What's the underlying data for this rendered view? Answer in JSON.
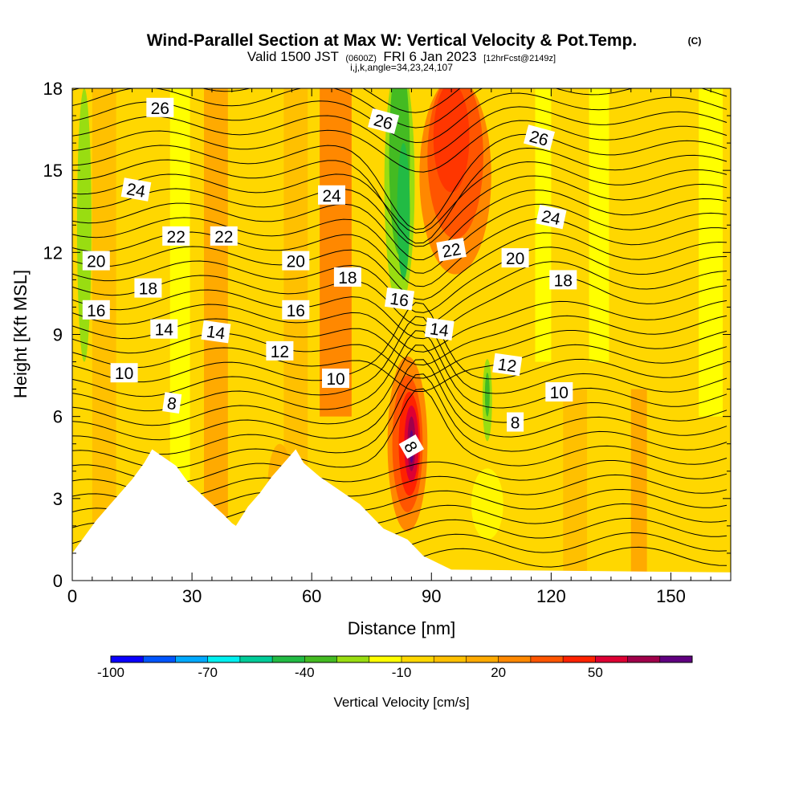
{
  "chart_data": {
    "type": "heatmap",
    "title": "Wind-Parallel Section at Max W: Vertical Velocity & Pot.Temp.",
    "title_mark": "(C)",
    "subtitle_parts": [
      "Valid 1500 JST",
      "(0600Z)",
      "FRI 6 Jan 2023",
      "[12hrFcst@2149z]"
    ],
    "subtitle2": "i,j,k,angle=34,23,24,107",
    "xlabel": "Distance [nm]",
    "ylabel": "Height [Kft MSL]",
    "xlim": [
      0,
      165
    ],
    "ylim": [
      0,
      18
    ],
    "xticks": [
      "0",
      "30",
      "60",
      "90",
      "120",
      "150"
    ],
    "yticks": [
      "0",
      "3",
      "6",
      "9",
      "12",
      "15",
      "18"
    ],
    "colorbar": {
      "label": "Vertical Velocity [cm/s]",
      "tick_labels": [
        "-100",
        "-70",
        "-40",
        "-10",
        "20",
        "50"
      ],
      "colors": [
        "#0a00ff",
        "#0055ff",
        "#00a9ff",
        "#00f0f0",
        "#00cc99",
        "#22bb44",
        "#44bb22",
        "#99dd11",
        "#ffff00",
        "#ffd700",
        "#ffc000",
        "#ffaa00",
        "#ff8800",
        "#ff5500",
        "#ff2200",
        "#dd0033",
        "#a0004a",
        "#600080"
      ]
    },
    "vertical_velocity_features": [
      {
        "x": 85,
        "y": 5.0,
        "value": 60,
        "note": "max updraft"
      },
      {
        "x": 83,
        "y": 15.0,
        "value": -40,
        "note": "downdraft column"
      },
      {
        "x": 95,
        "y": 15.0,
        "value": 35
      },
      {
        "x": 3,
        "y": 14.0,
        "value": -25
      },
      {
        "x": 104,
        "y": 6.5,
        "value": -25
      },
      {
        "x": 65,
        "y": 15.0,
        "value": 20
      },
      {
        "x": 35,
        "y": 16.0,
        "value": 15
      }
    ],
    "theta_contour_labels": [
      "26",
      "26",
      "26",
      "24",
      "24",
      "24",
      "22",
      "22",
      "22",
      "20",
      "20",
      "20",
      "18",
      "18",
      "18",
      "16",
      "16",
      "16",
      "14",
      "14",
      "14",
      "12",
      "12",
      "10",
      "10",
      "10",
      "8",
      "8",
      "8"
    ],
    "terrain_profile": [
      {
        "x": 0,
        "h": 1.0
      },
      {
        "x": 3,
        "h": 1.6
      },
      {
        "x": 6,
        "h": 2.2
      },
      {
        "x": 9,
        "h": 2.7
      },
      {
        "x": 12,
        "h": 3.2
      },
      {
        "x": 15,
        "h": 3.7
      },
      {
        "x": 18,
        "h": 4.3
      },
      {
        "x": 20,
        "h": 4.8
      },
      {
        "x": 26,
        "h": 4.2
      },
      {
        "x": 29,
        "h": 3.6
      },
      {
        "x": 32,
        "h": 3.2
      },
      {
        "x": 35,
        "h": 2.8
      },
      {
        "x": 38,
        "h": 2.4
      },
      {
        "x": 40,
        "h": 2.1
      },
      {
        "x": 41,
        "h": 2.0
      },
      {
        "x": 44,
        "h": 2.7
      },
      {
        "x": 47,
        "h": 3.2
      },
      {
        "x": 50,
        "h": 3.8
      },
      {
        "x": 53,
        "h": 4.3
      },
      {
        "x": 56,
        "h": 4.8
      },
      {
        "x": 58,
        "h": 4.3
      },
      {
        "x": 62,
        "h": 3.8
      },
      {
        "x": 66,
        "h": 3.4
      },
      {
        "x": 72,
        "h": 2.8
      },
      {
        "x": 78,
        "h": 1.9
      },
      {
        "x": 84,
        "h": 1.5
      },
      {
        "x": 88,
        "h": 0.9
      },
      {
        "x": 95,
        "h": 0.4
      },
      {
        "x": 165,
        "h": 0.3
      }
    ]
  }
}
